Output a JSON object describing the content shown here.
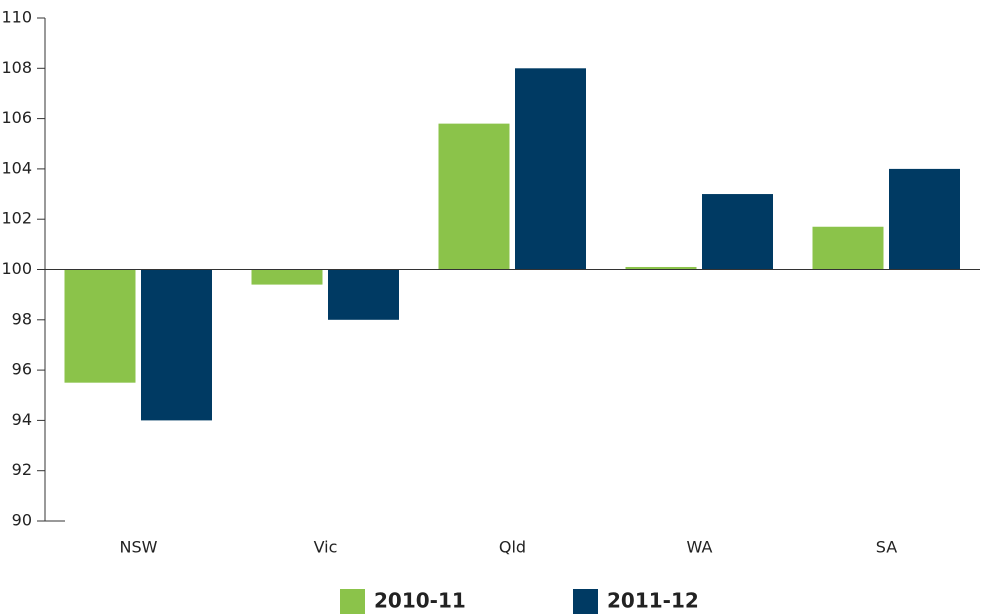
{
  "chart_data": {
    "type": "bar",
    "categories": [
      "NSW",
      "Vic",
      "Qld",
      "WA",
      "SA"
    ],
    "series": [
      {
        "name": "2010-11",
        "color": "#8bc34a",
        "values": [
          95.5,
          99.4,
          105.8,
          100.1,
          101.7
        ]
      },
      {
        "name": "2011-12",
        "color": "#003a63",
        "values": [
          94,
          98,
          108,
          103,
          104
        ]
      }
    ],
    "baseline": 100,
    "ylim": [
      90,
      110
    ],
    "yticks": [
      90,
      92,
      94,
      96,
      98,
      100,
      102,
      104,
      106,
      108,
      110
    ]
  }
}
